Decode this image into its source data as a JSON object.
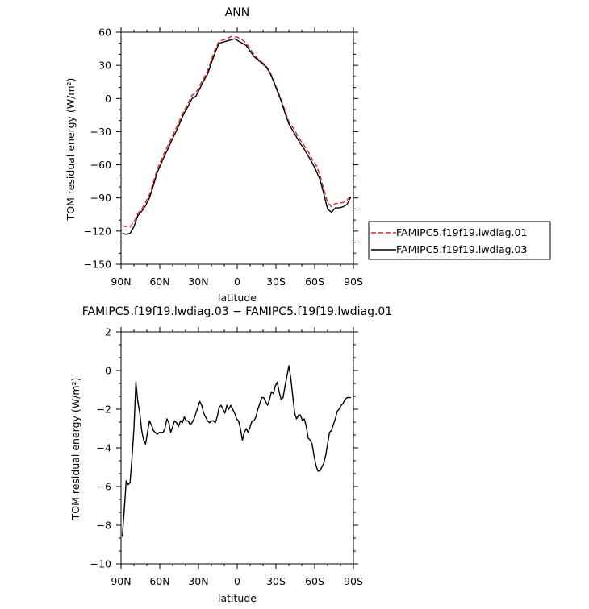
{
  "chart_data": [
    {
      "type": "line",
      "title": "ANN",
      "xlabel": "latitude",
      "ylabel": "TOM residual energy (W/m²)",
      "ylim": [
        -150,
        60
      ],
      "yticks": [
        60,
        30,
        0,
        -30,
        -60,
        -90,
        -120,
        -150
      ],
      "xlim": [
        90,
        -90
      ],
      "xticks": [
        90,
        60,
        30,
        0,
        -30,
        -60,
        -90
      ],
      "xtick_labels": [
        "90N",
        "60N",
        "30N",
        "0",
        "30S",
        "60S",
        "90S"
      ],
      "legend_placement": "right",
      "series": [
        {
          "name": "FAMIPC5.f19f19.lwdiag.01",
          "color": "#dd2222",
          "dash": "dashed",
          "x": [
            89,
            86,
            83,
            80,
            77,
            74,
            71,
            68,
            65,
            62,
            59,
            56,
            53,
            50,
            47,
            44,
            41,
            38,
            35,
            32,
            29,
            26,
            23,
            20,
            17,
            14,
            11,
            8,
            5,
            2,
            -1,
            -4,
            -7,
            -10,
            -13,
            -16,
            -19,
            -22,
            -25,
            -28,
            -31,
            -34,
            -37,
            -40,
            -43,
            -46,
            -49,
            -52,
            -55,
            -58,
            -61,
            -64,
            -67,
            -70,
            -73,
            -76,
            -79,
            -82,
            -85,
            -88
          ],
          "y": [
            -115,
            -116,
            -116,
            -112,
            -104,
            -100,
            -94,
            -87,
            -76,
            -64,
            -56,
            -48,
            -41,
            -33,
            -26,
            -18,
            -11,
            -4,
            3,
            5,
            12,
            18,
            25,
            35,
            45,
            52,
            53,
            54,
            56,
            56,
            55,
            53,
            50,
            45,
            40,
            36,
            33,
            30,
            25,
            17,
            8,
            -1,
            -11,
            -21,
            -26,
            -32,
            -38,
            -43,
            -48,
            -55,
            -60,
            -69,
            -82,
            -94,
            -98,
            -95,
            -95,
            -94,
            -92,
            -88
          ]
        },
        {
          "name": "FAMIPC5.f19f19.lwdiag.03",
          "color": "#000000",
          "dash": "solid",
          "x": [
            89,
            86,
            83,
            80,
            77,
            74,
            71,
            68,
            65,
            62,
            59,
            56,
            53,
            50,
            47,
            44,
            41,
            38,
            35,
            32,
            29,
            26,
            23,
            20,
            17,
            14,
            11,
            8,
            5,
            2,
            -1,
            -4,
            -7,
            -10,
            -13,
            -16,
            -19,
            -22,
            -25,
            -28,
            -31,
            -34,
            -37,
            -40,
            -43,
            -46,
            -49,
            -52,
            -55,
            -58,
            -61,
            -64,
            -67,
            -70,
            -73,
            -76,
            -79,
            -82,
            -85,
            -88
          ],
          "y": [
            -122,
            -123,
            -122,
            -116,
            -106,
            -102,
            -97,
            -90,
            -79,
            -67,
            -59,
            -51,
            -44,
            -36,
            -29,
            -21,
            -13,
            -7,
            0,
            2,
            9,
            16,
            22,
            32,
            42,
            50,
            51,
            52,
            53,
            54,
            52,
            50,
            48,
            43,
            38,
            35,
            32,
            29,
            24,
            16,
            7,
            -2,
            -13,
            -23,
            -29,
            -35,
            -41,
            -46,
            -52,
            -58,
            -65,
            -73,
            -86,
            -100,
            -103,
            -99,
            -99,
            -98,
            -96,
            -89
          ]
        }
      ]
    },
    {
      "type": "line",
      "title": "FAMIPC5.f19f19.lwdiag.03 − FAMIPC5.f19f19.lwdiag.01",
      "xlabel": "latitude",
      "ylabel": "TOM residual energy (W/m²)",
      "ylim": [
        -10,
        2
      ],
      "yticks": [
        2,
        0,
        -2,
        -4,
        -6,
        -8,
        -10
      ],
      "xlim": [
        90,
        -90
      ],
      "xticks": [
        90,
        60,
        30,
        0,
        -30,
        -60,
        -90
      ],
      "xtick_labels": [
        "90N",
        "60N",
        "30N",
        "0",
        "30S",
        "60S",
        "90S"
      ],
      "series": [
        {
          "color": "#000000",
          "dash": "solid",
          "x": [
            89,
            87.5,
            86,
            84.5,
            83,
            81.5,
            80,
            78.5,
            77,
            75.5,
            74,
            72.5,
            71,
            69.5,
            68,
            66.5,
            65,
            63.5,
            62,
            60.5,
            59,
            57.5,
            56,
            54.5,
            53,
            51.5,
            50,
            48.5,
            47,
            45.5,
            44,
            42.5,
            41,
            39.5,
            38,
            36.5,
            35,
            33.5,
            32,
            30.5,
            29,
            27.5,
            26,
            24.5,
            23,
            21.5,
            20,
            18.5,
            17,
            15.5,
            14,
            12.5,
            11,
            9.5,
            8,
            6.5,
            5,
            3.5,
            2,
            0.5,
            -1,
            -2.5,
            -4,
            -5.5,
            -7,
            -8.5,
            -10,
            -11.5,
            -13,
            -14.5,
            -16,
            -17.5,
            -19,
            -20.5,
            -22,
            -23.5,
            -25,
            -26.5,
            -28,
            -29.5,
            -31,
            -32.5,
            -34,
            -35.5,
            -37,
            -38.5,
            -40,
            -41.5,
            -43,
            -44.5,
            -46,
            -47.5,
            -49,
            -50.5,
            -52,
            -53.5,
            -55,
            -56.5,
            -58,
            -59.5,
            -61,
            -62.5,
            -64,
            -65.5,
            -67,
            -68.5,
            -70,
            -71.5,
            -73,
            -74.5,
            -76,
            -77.5,
            -79,
            -80.5,
            -82,
            -83.5,
            -85,
            -86.5,
            -88
          ],
          "y": [
            -8.6,
            -7.2,
            -5.7,
            -5.9,
            -5.8,
            -4.5,
            -3.0,
            -0.6,
            -1.6,
            -2.2,
            -3.1,
            -3.6,
            -3.8,
            -3.2,
            -2.6,
            -2.8,
            -3.1,
            -3.2,
            -3.3,
            -3.2,
            -3.2,
            -3.2,
            -3.0,
            -2.5,
            -2.7,
            -3.2,
            -2.9,
            -2.6,
            -2.7,
            -2.9,
            -2.6,
            -2.7,
            -2.4,
            -2.6,
            -2.6,
            -2.8,
            -2.7,
            -2.5,
            -2.2,
            -1.9,
            -1.6,
            -1.8,
            -2.2,
            -2.4,
            -2.6,
            -2.7,
            -2.6,
            -2.6,
            -2.7,
            -2.4,
            -1.9,
            -1.8,
            -2.0,
            -2.2,
            -1.8,
            -2.0,
            -1.8,
            -2.0,
            -2.2,
            -2.5,
            -2.6,
            -3.0,
            -3.6,
            -3.2,
            -3.0,
            -3.2,
            -2.9,
            -2.6,
            -2.6,
            -2.4,
            -2.0,
            -1.7,
            -1.4,
            -1.4,
            -1.6,
            -1.8,
            -1.5,
            -1.1,
            -1.2,
            -0.8,
            -0.6,
            -1.1,
            -1.5,
            -1.4,
            -0.8,
            -0.3,
            0.25,
            -0.4,
            -1.3,
            -2.2,
            -2.5,
            -2.3,
            -2.3,
            -2.6,
            -2.5,
            -2.9,
            -3.5,
            -3.6,
            -3.8,
            -4.4,
            -4.9,
            -5.2,
            -5.2,
            -5.0,
            -4.8,
            -4.4,
            -3.8,
            -3.2,
            -3.1,
            -2.8,
            -2.5,
            -2.1,
            -2.0,
            -1.8,
            -1.7,
            -1.5,
            -1.4,
            -1.4,
            -1.4
          ]
        }
      ]
    }
  ]
}
